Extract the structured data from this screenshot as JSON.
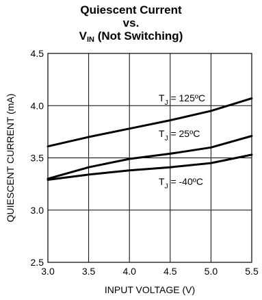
{
  "chart_data": {
    "type": "line",
    "title": {
      "line1": "Quiescent Current",
      "line2": "vs.",
      "line3_main": "V",
      "line3_sub": "IN",
      "line3_rest": " (Not Switching)"
    },
    "xlabel": "INPUT VOLTAGE (V)",
    "ylabel": "QUIESCENT CURRENT (mA)",
    "xlim": [
      3.0,
      5.5
    ],
    "ylim": [
      2.5,
      4.5
    ],
    "xticks": [
      "3.0",
      "3.5",
      "4.0",
      "4.5",
      "5.0",
      "5.5"
    ],
    "yticks": [
      "2.5",
      "3.0",
      "3.5",
      "4.0",
      "4.5"
    ],
    "grid": true,
    "series": [
      {
        "label_main": "T",
        "label_sub": "J",
        "label_rest": " = 125ºC",
        "x": [
          3.0,
          3.5,
          4.0,
          4.5,
          5.0,
          5.5
        ],
        "y": [
          3.61,
          3.7,
          3.78,
          3.86,
          3.95,
          4.07
        ]
      },
      {
        "label_main": "T",
        "label_sub": "J",
        "label_rest": " = 25ºC",
        "x": [
          3.0,
          3.5,
          4.0,
          4.5,
          5.0,
          5.5
        ],
        "y": [
          3.3,
          3.41,
          3.49,
          3.54,
          3.6,
          3.71
        ]
      },
      {
        "label_main": "T",
        "label_sub": "J",
        "label_rest": " = -40ºC",
        "x": [
          3.0,
          3.5,
          4.0,
          4.5,
          5.0,
          5.5
        ],
        "y": [
          3.29,
          3.34,
          3.38,
          3.41,
          3.45,
          3.53
        ]
      }
    ]
  }
}
